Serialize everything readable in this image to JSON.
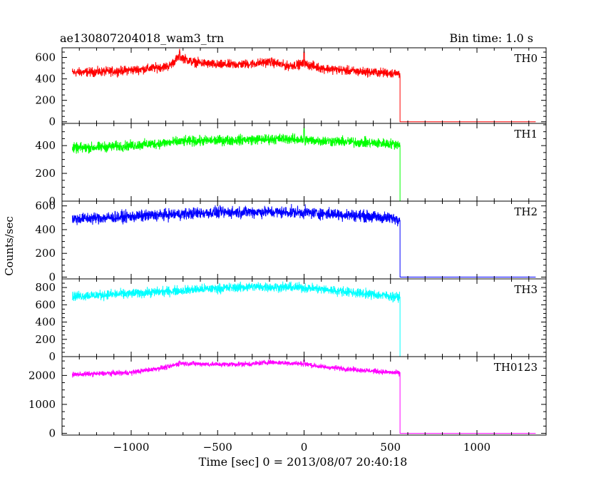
{
  "chart_data": {
    "type": "line",
    "title": "ae130807204018_wam3_trn",
    "subtitle": "Bin time: 1.0 s",
    "xlabel": "Time [sec] 0 = 2013/08/07 20:40:18",
    "ylabel": "Counts/sec",
    "xlim": [
      -1400,
      1400
    ],
    "x_ticks": [
      -1000,
      -500,
      0,
      500,
      1000
    ],
    "x_tick_labels": [
      "−1000",
      "−500",
      "0",
      "500",
      "1000"
    ],
    "data_end_x": 555,
    "series_end_x": 1340,
    "panels": [
      {
        "name": "TH0",
        "color": "#ff0000",
        "ylim": [
          -15,
          690
        ],
        "y_ticks": [
          0,
          200,
          400,
          600
        ],
        "y_tick_labels": [
          "0",
          "200",
          "400",
          "600"
        ],
        "x": [
          -1340,
          -1100,
          -900,
          -780,
          -720,
          -650,
          -500,
          -300,
          -200,
          -100,
          0,
          100,
          300,
          550
        ],
        "values": [
          460,
          470,
          495,
          520,
          610,
          560,
          530,
          540,
          560,
          520,
          540,
          500,
          470,
          450
        ],
        "noise": 35,
        "spikes": [
          [
            -720,
            680
          ],
          [
            0,
            670
          ]
        ]
      },
      {
        "name": "TH1",
        "color": "#00ff00",
        "ylim": [
          0,
          560
        ],
        "y_ticks": [
          0,
          200,
          400
        ],
        "y_tick_labels": [
          "0",
          "200",
          "400"
        ],
        "x": [
          -1340,
          -1000,
          -700,
          -400,
          -100,
          0,
          200,
          550
        ],
        "values": [
          380,
          400,
          430,
          440,
          450,
          440,
          430,
          410
        ],
        "noise": 30,
        "spikes": [
          [
            0,
            540
          ]
        ]
      },
      {
        "name": "TH2",
        "color": "#0000ff",
        "ylim": [
          -15,
          640
        ],
        "y_ticks": [
          0,
          200,
          400,
          600
        ],
        "y_tick_labels": [
          "0",
          "200",
          "400",
          "600"
        ],
        "x": [
          -1340,
          -1000,
          -600,
          -300,
          0,
          300,
          550
        ],
        "values": [
          490,
          510,
          540,
          550,
          545,
          520,
          490
        ],
        "noise": 40,
        "spikes": []
      },
      {
        "name": "TH3",
        "color": "#00ffff",
        "ylim": [
          0,
          900
        ],
        "y_ticks": [
          0,
          200,
          400,
          600,
          800
        ],
        "y_tick_labels": [
          "0",
          "200",
          "400",
          "600",
          "800"
        ],
        "x": [
          -1340,
          -1000,
          -600,
          -300,
          0,
          300,
          550
        ],
        "values": [
          700,
          730,
          780,
          810,
          800,
          740,
          690
        ],
        "noise": 45,
        "spikes": []
      },
      {
        "name": "TH0123",
        "color": "#ff00ff",
        "ylim": [
          -60,
          2650
        ],
        "y_ticks": [
          0,
          1000,
          2000
        ],
        "y_tick_labels": [
          "0",
          "1000",
          "2000"
        ],
        "x": [
          -1340,
          -1000,
          -780,
          -720,
          -500,
          -300,
          -200,
          0,
          100,
          300,
          550
        ],
        "values": [
          2030,
          2100,
          2300,
          2420,
          2380,
          2400,
          2460,
          2400,
          2300,
          2200,
          2080
        ],
        "noise": 70,
        "spikes": [
          [
            -720,
            2500
          ],
          [
            0,
            2560
          ]
        ]
      }
    ]
  }
}
